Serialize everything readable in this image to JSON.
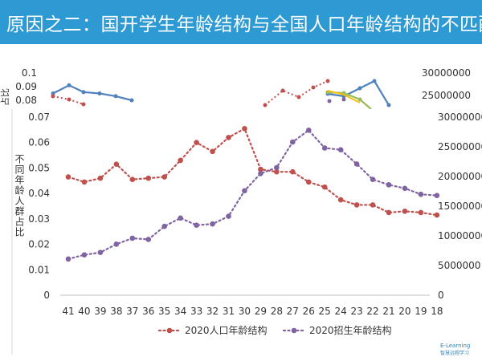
{
  "header": {
    "title": "原因之二：国开学生年龄结构与全国人口年龄结构的不匹配"
  },
  "colors": {
    "header_bg": "#2e9ad3",
    "series_population": "#c0504d",
    "series_students": "#8064a2",
    "back_line_blue": "#4f81bd",
    "back_line_green": "#9bbb59",
    "back_line_yellow": "#f2c314"
  },
  "chart_data": [
    {
      "id": "front",
      "type": "line",
      "title": "",
      "x_label": "",
      "y_label": "不同年龄人群占比",
      "categories": [
        "41",
        "40",
        "39",
        "38",
        "37",
        "36",
        "35",
        "34",
        "33",
        "32",
        "31",
        "30",
        "29",
        "28",
        "27",
        "26",
        "25",
        "24",
        "23",
        "22",
        "21",
        "20",
        "19",
        "18"
      ],
      "y_left_ticks": [
        "0",
        "0.01",
        "0.02",
        "0.03",
        "0.04",
        "0.05",
        "0.06",
        "0.07"
      ],
      "y_left_range": [
        0,
        0.07
      ],
      "y_right_ticks": [
        "0",
        "5000000",
        "10000000",
        "15000000",
        "20000000",
        "25000000",
        "30000000"
      ],
      "y_right_range": [
        0,
        30000000
      ],
      "series": [
        {
          "name": "2020人口年龄结构",
          "axis": "left",
          "values": [
            0.0465,
            0.0445,
            0.046,
            0.0515,
            0.0455,
            0.046,
            0.0465,
            0.053,
            0.06,
            0.0565,
            0.062,
            0.0655,
            0.0495,
            0.0485,
            0.0485,
            0.0445,
            0.0425,
            0.0375,
            0.0355,
            0.0355,
            0.0325,
            0.033,
            0.0325,
            0.0315
          ]
        },
        {
          "name": "2020招生年龄结构",
          "axis": "right",
          "values": [
            6100000,
            6800000,
            7200000,
            8600000,
            9600000,
            9400000,
            11600000,
            13000000,
            11800000,
            12000000,
            13300000,
            17600000,
            20500000,
            21500000,
            25800000,
            27800000,
            24800000,
            24500000,
            22100000,
            19500000,
            18600000,
            18000000,
            17000000,
            16800000
          ]
        }
      ],
      "legend": [
        "2020人口年龄结构",
        "2020招生年龄结构"
      ],
      "legend_position": "bottom"
    },
    {
      "id": "back",
      "type": "line",
      "partially_hidden": true,
      "y_left_ticks": [
        "0.08",
        "0.09",
        "0.1"
      ],
      "y_right_ticks": [
        "25000000",
        "30000000"
      ],
      "y_left_range": [
        0.07,
        0.1
      ],
      "series": [
        {
          "name": "blue",
          "values": [
            0.085,
            0.091,
            0.086,
            0.085,
            0.083,
            0.08
          ]
        },
        {
          "name": "red_dotted_right",
          "values": [
            0.08,
            0.083,
            0.087,
            0.084,
            0.088,
            0.092
          ]
        }
      ]
    }
  ],
  "watermark": {
    "line1": "E-Learning",
    "line2": "智慧远程学习"
  }
}
